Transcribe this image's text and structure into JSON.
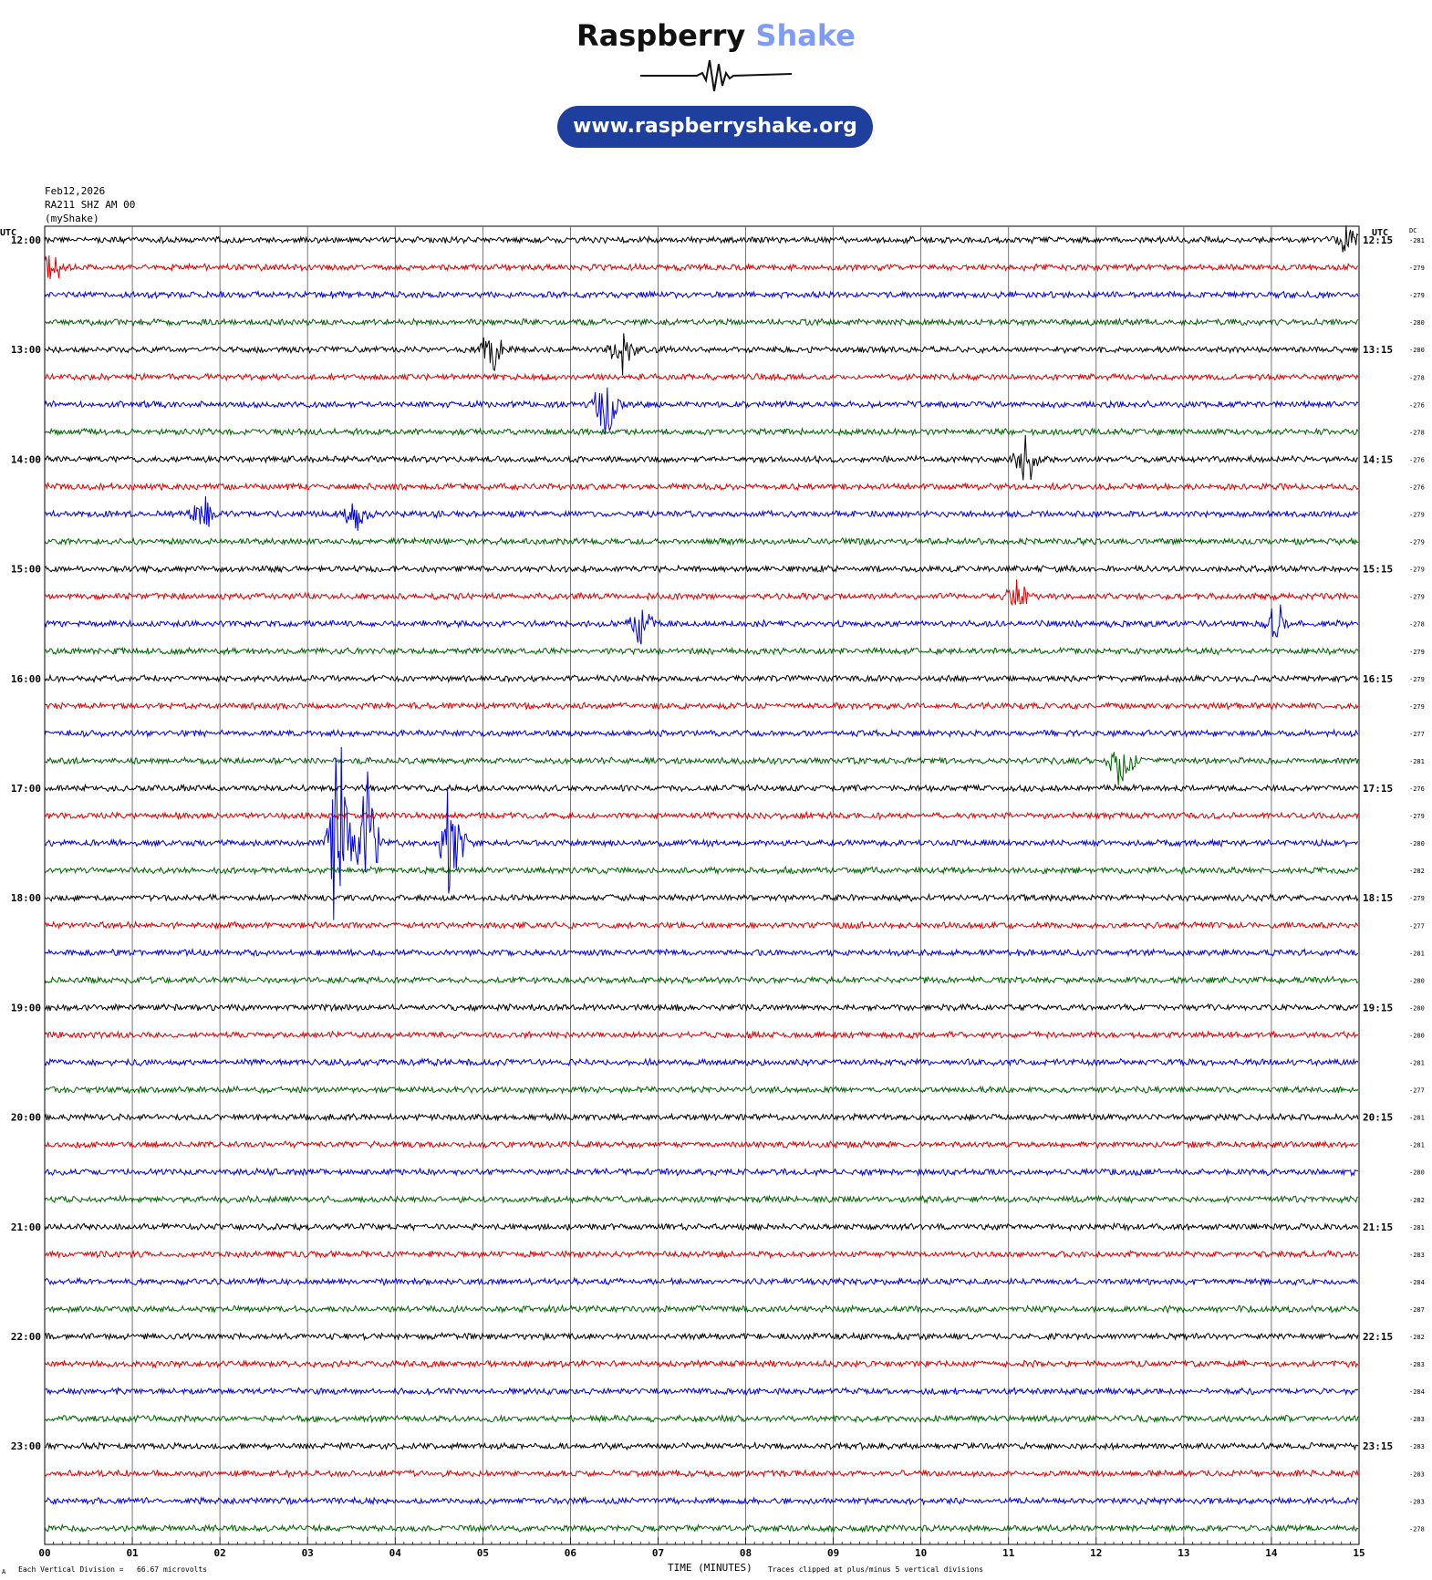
{
  "header": {
    "brand_part1": "Raspberry",
    "brand_part2": "Shake",
    "url": "www.raspberryshake.org",
    "brand_color": "#7f9cf5",
    "pill_color": "#1f3f9f"
  },
  "station_info": {
    "date": "Feb12,2026",
    "station": "RA211 SHZ AM 00",
    "source": "(myShake)"
  },
  "labels": {
    "left_utc": "UTC",
    "right_utc": "UTC",
    "dc_label": "DC"
  },
  "footer": {
    "vertical_division": "Each Vertical Division =   66.67 microvolts",
    "xlabel": "TIME (MINUTES)",
    "clip_note": "Traces clipped at plus/minus 5 vertical divisions",
    "corner_mark": "A"
  },
  "chart_data": {
    "type": "line",
    "title": "",
    "xlabel": "TIME (MINUTES)",
    "ylabel": "",
    "x_ticks": [
      "00",
      "01",
      "02",
      "03",
      "04",
      "05",
      "06",
      "07",
      "08",
      "09",
      "10",
      "11",
      "12",
      "13",
      "14",
      "15"
    ],
    "xlim": [
      0,
      15
    ],
    "grid": true,
    "trace_colors": [
      "#000000",
      "#e00000",
      "#0000e0",
      "#006400"
    ],
    "left_hour_labels": [
      "12:00",
      "13:00",
      "14:00",
      "15:00",
      "16:00",
      "17:00",
      "18:00",
      "19:00",
      "20:00",
      "21:00",
      "22:00",
      "23:00"
    ],
    "right_hour_labels": [
      "12:15",
      "13:15",
      "14:15",
      "15:15",
      "16:15",
      "17:15",
      "18:15",
      "19:15",
      "20:15",
      "21:15",
      "22:15",
      "23:15"
    ],
    "dc_offsets": [
      "-281",
      "-279",
      "-279",
      "-280",
      "-280",
      "-278",
      "-276",
      "-278",
      "-276",
      "-276",
      "-279",
      "-279",
      "-279",
      "-279",
      "-278",
      "-279",
      "-279",
      "-279",
      "-277",
      "-281",
      "-276",
      "-279",
      "-280",
      "-282",
      "-279",
      "-277",
      "-281",
      "-280",
      "-280",
      "-280",
      "-281",
      "-277",
      "-281",
      "-281",
      "-280",
      "-282",
      "-281",
      "-283",
      "-284",
      "-287",
      "-282",
      "-283",
      "-284",
      "-283",
      "-283",
      "-283",
      "-283",
      "-278"
    ],
    "events": [
      {
        "row": 0,
        "minute": 14.85,
        "amp": 1.2
      },
      {
        "row": 1,
        "minute": 0.1,
        "amp": 1.0
      },
      {
        "row": 4,
        "minute": 5.1,
        "amp": 1.4
      },
      {
        "row": 4,
        "minute": 6.6,
        "amp": 2.0
      },
      {
        "row": 6,
        "minute": 6.4,
        "amp": 2.6
      },
      {
        "row": 8,
        "minute": 11.2,
        "amp": 1.8
      },
      {
        "row": 10,
        "minute": 1.8,
        "amp": 1.2
      },
      {
        "row": 10,
        "minute": 3.55,
        "amp": 1.4
      },
      {
        "row": 13,
        "minute": 11.1,
        "amp": 1.0
      },
      {
        "row": 14,
        "minute": 6.8,
        "amp": 1.4
      },
      {
        "row": 14,
        "minute": 14.05,
        "amp": 1.4
      },
      {
        "row": 19,
        "minute": 12.3,
        "amp": 2.0
      },
      {
        "row": 22,
        "minute": 3.35,
        "amp": 8.0
      },
      {
        "row": 22,
        "minute": 3.7,
        "amp": 5.0
      },
      {
        "row": 22,
        "minute": 4.65,
        "amp": 4.5
      }
    ]
  }
}
